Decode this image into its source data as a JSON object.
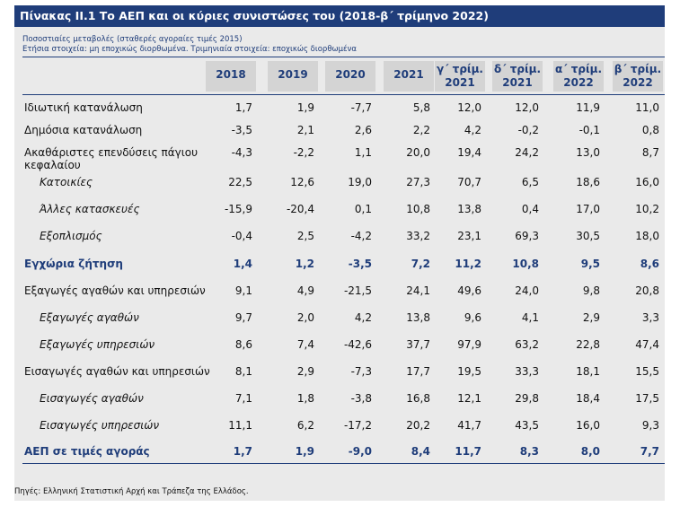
{
  "title": "Πίνακας ΙΙ.1 Το ΑΕΠ και οι κύριες συνιστώσες του (2018-β΄ τρίμηνο 2022)",
  "subtitle1": "Ποσοστιαίες μεταβολές (σταθερές αγοραίες τιμές 2015)",
  "subtitle2": "Ετήσια στοιχεία: μη εποχικώς διορθωμένα. Τριμηνιαία στοιχεία: εποχικώς διορθωμένα",
  "columns": [
    {
      "line1": "2018",
      "line2": ""
    },
    {
      "line1": "2019",
      "line2": ""
    },
    {
      "line1": "2020",
      "line2": ""
    },
    {
      "line1": "2021",
      "line2": ""
    },
    {
      "line1": "γ΄ τρίμ.",
      "line2": "2021"
    },
    {
      "line1": "δ΄ τρίμ.",
      "line2": "2021"
    },
    {
      "line1": "α΄ τρίμ.",
      "line2": "2022"
    },
    {
      "line1": "β΄ τρίμ.",
      "line2": "2022"
    }
  ],
  "rows": [
    {
      "label": "Ιδιωτική κατανάλωση",
      "style": "normal",
      "values": [
        "1,7",
        "1,9",
        "-7,7",
        "5,8",
        "12,0",
        "12,0",
        "11,9",
        "11,0"
      ]
    },
    {
      "label": "Δημόσια κατανάλωση",
      "style": "normal",
      "values": [
        "-3,5",
        "2,1",
        "2,6",
        "2,2",
        "4,2",
        "-0,2",
        "-0,1",
        "0,8"
      ]
    },
    {
      "label": "Ακαθάριστες επενδύσεις πάγιου κεφαλαίου",
      "style": "wrap",
      "values": [
        "-4,3",
        "-2,2",
        "1,1",
        "20,0",
        "19,4",
        "24,2",
        "13,0",
        "8,7"
      ]
    },
    {
      "label": "Κατοικίες",
      "style": "ital",
      "values": [
        "22,5",
        "12,6",
        "19,0",
        "27,3",
        "70,7",
        "6,5",
        "18,6",
        "16,0"
      ]
    },
    {
      "label": "Άλλες κατασκευές",
      "style": "ital",
      "values": [
        "-15,9",
        "-20,4",
        "0,1",
        "10,8",
        "13,8",
        "0,4",
        "17,0",
        "10,2"
      ]
    },
    {
      "label": "Εξοπλισμός",
      "style": "ital",
      "values": [
        "-0,4",
        "2,5",
        "-4,2",
        "33,2",
        "23,1",
        "69,3",
        "30,5",
        "18,0"
      ]
    },
    {
      "label": "Εγχώρια ζήτηση",
      "style": "bold",
      "values": [
        "1,4",
        "1,2",
        "-3,5",
        "7,2",
        "11,2",
        "10,8",
        "9,5",
        "8,6"
      ]
    },
    {
      "label": "Εξαγωγές αγαθών και υπηρεσιών",
      "style": "normal",
      "values": [
        "9,1",
        "4,9",
        "-21,5",
        "24,1",
        "49,6",
        "24,0",
        "9,8",
        "20,8"
      ]
    },
    {
      "label": "Εξαγωγές αγαθών",
      "style": "ital",
      "values": [
        "9,7",
        "2,0",
        "4,2",
        "13,8",
        "9,6",
        "4,1",
        "2,9",
        "3,3"
      ]
    },
    {
      "label": "Εξαγωγές υπηρεσιών",
      "style": "ital",
      "values": [
        "8,6",
        "7,4",
        "-42,6",
        "37,7",
        "97,9",
        "63,2",
        "22,8",
        "47,4"
      ]
    },
    {
      "label": "Εισαγωγές αγαθών και υπηρεσιών",
      "style": "normal",
      "values": [
        "8,1",
        "2,9",
        "-7,3",
        "17,7",
        "19,5",
        "33,3",
        "18,1",
        "15,5"
      ]
    },
    {
      "label": "Εισαγωγές αγαθών",
      "style": "ital",
      "values": [
        "7,1",
        "1,8",
        "-3,8",
        "16,8",
        "12,1",
        "29,8",
        "18,4",
        "17,5"
      ]
    },
    {
      "label": "Εισαγωγές υπηρεσιών",
      "style": "ital",
      "values": [
        "11,1",
        "6,2",
        "-17,2",
        "20,2",
        "41,7",
        "43,5",
        "16,0",
        "9,3"
      ]
    },
    {
      "label": "ΑΕΠ σε τιμές αγοράς",
      "style": "bold",
      "values": [
        "1,7",
        "1,9",
        "-9,0",
        "8,4",
        "11,7",
        "8,3",
        "8,0",
        "7,7"
      ]
    }
  ],
  "source": "Πηγές: Ελληνική Στατιστική Αρχή και Τράπεζα της Ελλάδος.",
  "colors": {
    "title_bg": "#1f3d7a",
    "panel_bg": "#eaeaea",
    "header_bg": "#d4d4d4",
    "accent": "#1f3d7a"
  }
}
